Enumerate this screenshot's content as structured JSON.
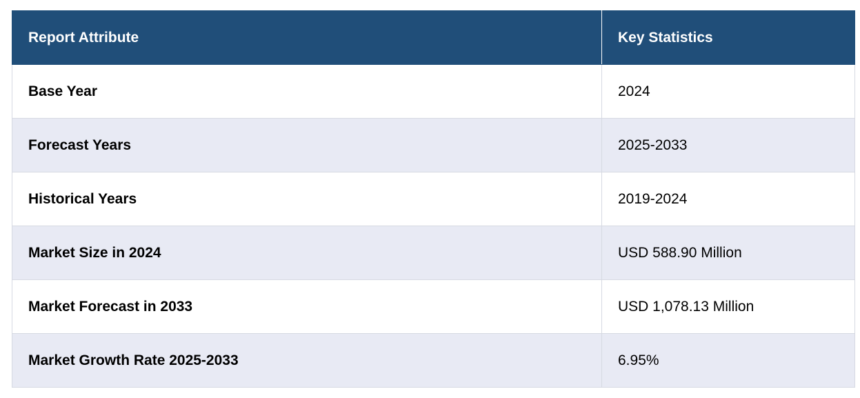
{
  "table": {
    "headers": {
      "attribute": "Report Attribute",
      "statistics": "Key Statistics"
    },
    "rows": [
      {
        "attribute": "Base Year",
        "value": "2024"
      },
      {
        "attribute": "Forecast Years",
        "value": "2025-2033"
      },
      {
        "attribute": "Historical Years",
        "value": "2019-2024"
      },
      {
        "attribute": "Market Size in 2024",
        "value": "USD 588.90 Million"
      },
      {
        "attribute": "Market Forecast in 2033",
        "value": "USD 1,078.13 Million"
      },
      {
        "attribute": "Market Growth Rate 2025-2033",
        "value": "6.95%"
      }
    ],
    "colors": {
      "header_bg": "#204e79",
      "header_text": "#ffffff",
      "stripe_bg": "#e8eaf4",
      "row_bg": "#ffffff",
      "border": "#d6d9e2"
    }
  }
}
